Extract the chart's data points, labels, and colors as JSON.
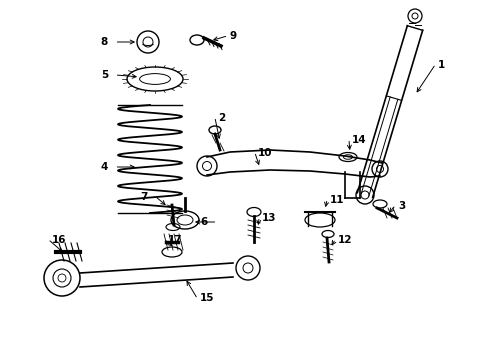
{
  "bg_color": "#ffffff",
  "line_color": "#000000",
  "figsize": [
    4.89,
    3.6
  ],
  "dpi": 100,
  "xlim": [
    0,
    489
  ],
  "ylim": [
    0,
    360
  ]
}
